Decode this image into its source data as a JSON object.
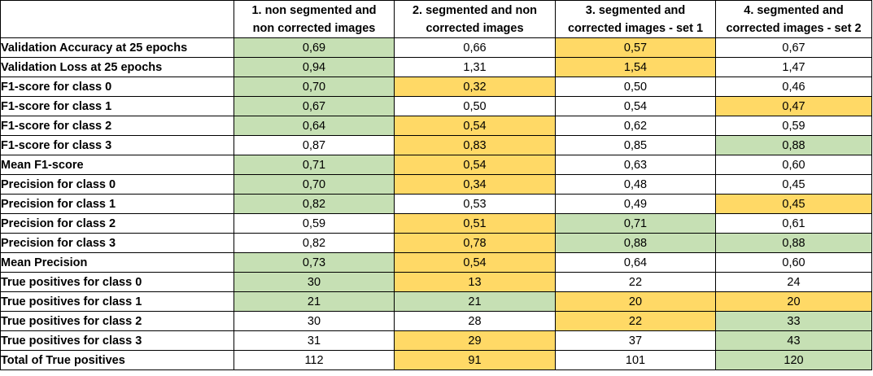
{
  "columns": [
    {
      "line1": "",
      "line2": ""
    },
    {
      "line1": "1. non segmented and",
      "line2": "non corrected images"
    },
    {
      "line1": "2. segmented and non",
      "line2": "corrected images"
    },
    {
      "line1": "3. segmented and",
      "line2": "corrected images - set 1"
    },
    {
      "line1": "4. segmented and",
      "line2": "corrected images - set 2"
    }
  ],
  "highlight_colors": {
    "green": "#c6e0b4",
    "yellow": "#ffd966"
  },
  "rows": [
    {
      "label": "Validation Accuracy at 25 epochs",
      "values": [
        "0,69",
        "0,66",
        "0,57",
        "0,67"
      ],
      "hl": [
        "green",
        "none",
        "yellow",
        "none"
      ]
    },
    {
      "label": "Validation Loss at 25 epochs",
      "values": [
        "0,94",
        "1,31",
        "1,54",
        "1,47"
      ],
      "hl": [
        "green",
        "none",
        "yellow",
        "none"
      ]
    },
    {
      "label": "F1-score for class 0",
      "values": [
        "0,70",
        "0,32",
        "0,50",
        "0,46"
      ],
      "hl": [
        "green",
        "yellow",
        "none",
        "none"
      ]
    },
    {
      "label": "F1-score for class 1",
      "values": [
        "0,67",
        "0,50",
        "0,54",
        "0,47"
      ],
      "hl": [
        "green",
        "none",
        "none",
        "yellow"
      ]
    },
    {
      "label": "F1-score for class 2",
      "values": [
        "0,64",
        "0,54",
        "0,62",
        "0,59"
      ],
      "hl": [
        "green",
        "yellow",
        "none",
        "none"
      ]
    },
    {
      "label": "F1-score for class 3",
      "values": [
        "0,87",
        "0,83",
        "0,85",
        "0,88"
      ],
      "hl": [
        "none",
        "yellow",
        "none",
        "green"
      ]
    },
    {
      "label": "Mean F1-score",
      "values": [
        "0,71",
        "0,54",
        "0,63",
        "0,60"
      ],
      "hl": [
        "green",
        "yellow",
        "none",
        "none"
      ]
    },
    {
      "label": "Precision for class 0",
      "values": [
        "0,70",
        "0,34",
        "0,48",
        "0,45"
      ],
      "hl": [
        "green",
        "yellow",
        "none",
        "none"
      ]
    },
    {
      "label": "Precision for class 1",
      "values": [
        "0,82",
        "0,53",
        "0,49",
        "0,45"
      ],
      "hl": [
        "green",
        "none",
        "none",
        "yellow"
      ]
    },
    {
      "label": "Precision for class 2",
      "values": [
        "0,59",
        "0,51",
        "0,71",
        "0,61"
      ],
      "hl": [
        "none",
        "yellow",
        "green",
        "none"
      ]
    },
    {
      "label": "Precision for class 3",
      "values": [
        "0,82",
        "0,78",
        "0,88",
        "0,88"
      ],
      "hl": [
        "none",
        "yellow",
        "green",
        "green"
      ]
    },
    {
      "label": "Mean Precision",
      "values": [
        "0,73",
        "0,54",
        "0,64",
        "0,60"
      ],
      "hl": [
        "green",
        "yellow",
        "none",
        "none"
      ]
    },
    {
      "label": "True positives for class 0",
      "values": [
        "30",
        "13",
        "22",
        "24"
      ],
      "hl": [
        "green",
        "yellow",
        "none",
        "none"
      ]
    },
    {
      "label": "True positives for class 1",
      "values": [
        "21",
        "21",
        "20",
        "20"
      ],
      "hl": [
        "green",
        "green",
        "yellow",
        "yellow"
      ]
    },
    {
      "label": "True positives for class 2",
      "values": [
        "30",
        "28",
        "22",
        "33"
      ],
      "hl": [
        "none",
        "none",
        "yellow",
        "green"
      ]
    },
    {
      "label": "True positives for class 3",
      "values": [
        "31",
        "29",
        "37",
        "43"
      ],
      "hl": [
        "none",
        "yellow",
        "none",
        "green"
      ]
    },
    {
      "label": "Total of True positives",
      "values": [
        "112",
        "91",
        "101",
        "120"
      ],
      "hl": [
        "none",
        "yellow",
        "none",
        "green"
      ]
    }
  ]
}
